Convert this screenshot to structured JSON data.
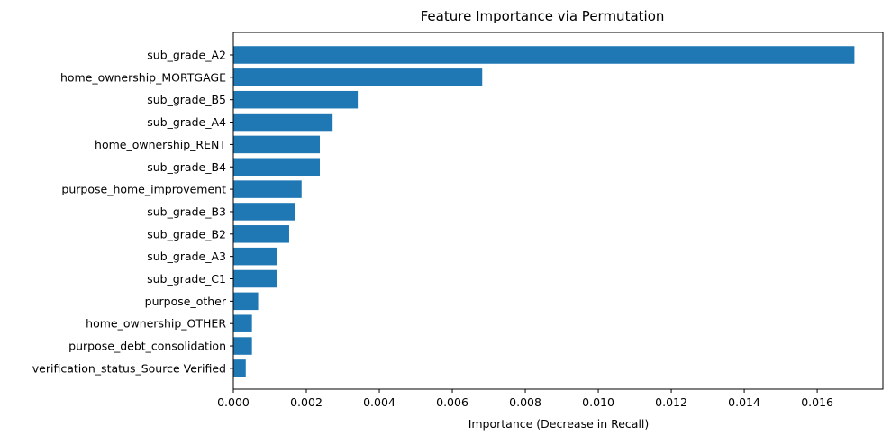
{
  "chart_data": {
    "type": "bar",
    "orientation": "horizontal",
    "title": "Feature Importance via Permutation",
    "xlabel": "Importance (Decrease in Recall)",
    "ylabel": "",
    "categories": [
      "sub_grade_A2",
      "home_ownership_MORTGAGE",
      "sub_grade_B5",
      "sub_grade_A4",
      "home_ownership_RENT",
      "sub_grade_B4",
      "purpose_home_improvement",
      "sub_grade_B3",
      "sub_grade_B2",
      "sub_grade_A3",
      "sub_grade_C1",
      "purpose_other",
      "home_ownership_OTHER",
      "purpose_debt_consolidation",
      "verification_status_Source Verified"
    ],
    "values": [
      0.01702,
      0.00682,
      0.00341,
      0.00272,
      0.00237,
      0.00237,
      0.00187,
      0.0017,
      0.00153,
      0.00119,
      0.00119,
      0.00068,
      0.00051,
      0.00051,
      0.00034
    ],
    "xlim": [
      0,
      0.0178
    ],
    "xticks": [
      0.0,
      0.002,
      0.004,
      0.006,
      0.008,
      0.01,
      0.012,
      0.014,
      0.016
    ],
    "xtick_labels": [
      "0.000",
      "0.002",
      "0.004",
      "0.006",
      "0.008",
      "0.010",
      "0.012",
      "0.014",
      "0.016"
    ],
    "bar_color": "#1f77b4",
    "grid": false,
    "legend": "none"
  }
}
